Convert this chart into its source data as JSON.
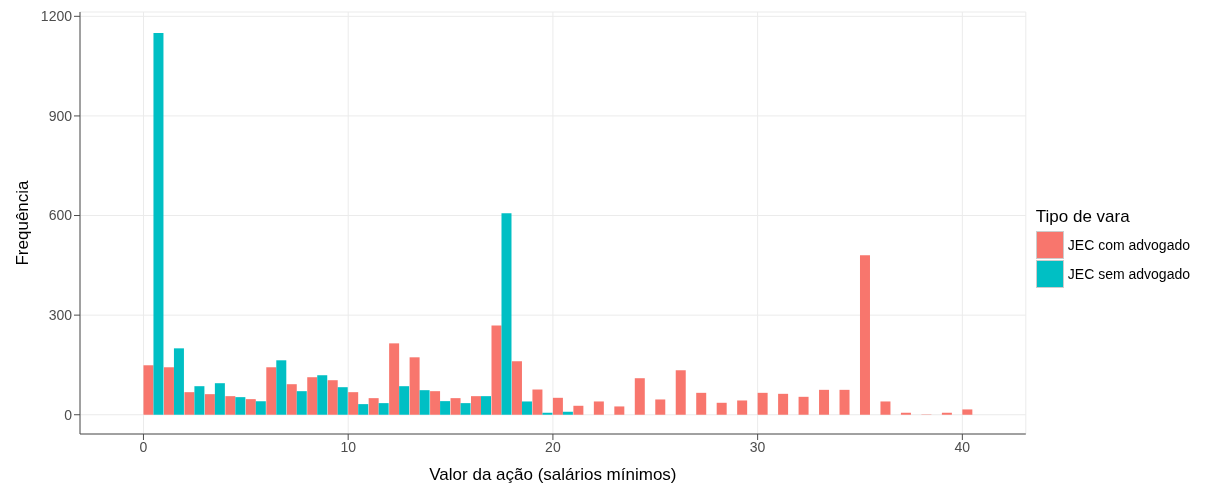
{
  "chart_data": {
    "type": "histogram",
    "xlabel": "Valor da ação (salários mínimos)",
    "ylabel": "Frequência",
    "legend_title": "Tipo de vara",
    "bins": [
      -1,
      0,
      1,
      2,
      3,
      4,
      5,
      6,
      7,
      8,
      9,
      10,
      11,
      12,
      13,
      14,
      15,
      16,
      17,
      18,
      19,
      20,
      21,
      22,
      23,
      24,
      25,
      26,
      27,
      28,
      29,
      30,
      31,
      32,
      33,
      34,
      35,
      36,
      37,
      38,
      39,
      40,
      41
    ],
    "series": [
      {
        "name": "JEC com advogado",
        "color": "#f8766d",
        "values": [
          0,
          149,
          143,
          68,
          62,
          56,
          47,
          143,
          92,
          113,
          104,
          68,
          50,
          215,
          173,
          71,
          50,
          56,
          269,
          161,
          76,
          51,
          27,
          40,
          25,
          110,
          46,
          134,
          66,
          36,
          43,
          66,
          63,
          54,
          75,
          75,
          480,
          40,
          6,
          1,
          6,
          16
        ]
      },
      {
        "name": "JEC sem advogado",
        "color": "#00bfc4",
        "values": [
          0,
          1150,
          200,
          86,
          95,
          53,
          41,
          164,
          71,
          119,
          83,
          32,
          35,
          86,
          74,
          41,
          35,
          56,
          607,
          40,
          6,
          9,
          0,
          0,
          0,
          0,
          0,
          0,
          0,
          0,
          0,
          0,
          0,
          0,
          0,
          0,
          0,
          0,
          0,
          0,
          0,
          0
        ]
      }
    ],
    "xlim": [
      -3.1,
      43.1
    ],
    "xticks": [
      0,
      10,
      20,
      30,
      40
    ],
    "ylim": [
      -58,
      1213
    ],
    "yticks": [
      0,
      300,
      600,
      900,
      1200
    ],
    "grid": true,
    "legend": "right"
  }
}
